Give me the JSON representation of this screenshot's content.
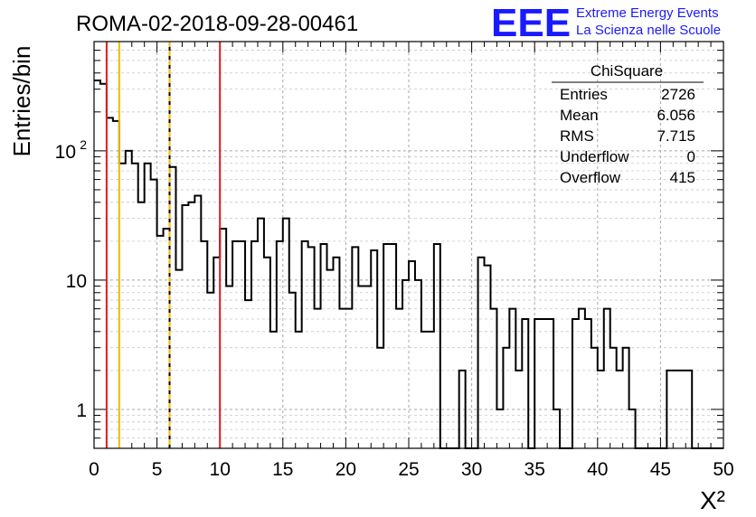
{
  "run_title": "ROMA-02-2018-09-28-00461",
  "logo": {
    "mark": "EEE",
    "line1": "Extreme Energy Events",
    "line2": "La Scienza nelle Scuole",
    "color": "#1a1aff"
  },
  "stats_box": {
    "title": "ChiSquare",
    "rows": [
      {
        "label": "Entries",
        "value": "2726"
      },
      {
        "label": "Mean",
        "value": "6.056"
      },
      {
        "label": "RMS",
        "value": "7.715"
      },
      {
        "label": "Underflow",
        "value": "0"
      },
      {
        "label": "Overflow",
        "value": "415"
      }
    ]
  },
  "chart_data": {
    "type": "histogram",
    "title": "ROMA-02-2018-09-28-00461",
    "xlabel": "X²",
    "ylabel": "Entries/bin",
    "xlim": [
      0,
      50
    ],
    "ylim": [
      0.5,
      700
    ],
    "yscale": "log",
    "grid": true,
    "bin_width": 0.5,
    "x_ticks": [
      "0",
      "5",
      "10",
      "15",
      "20",
      "25",
      "30",
      "35",
      "40",
      "45",
      "50"
    ],
    "y_ticks": [
      {
        "value": 1,
        "label": "1"
      },
      {
        "value": 10,
        "label": "10"
      },
      {
        "value": 100,
        "label": "10",
        "sup": "2"
      }
    ],
    "values": [
      350,
      330,
      180,
      170,
      80,
      100,
      80,
      40,
      80,
      60,
      22,
      25,
      75,
      12,
      38,
      40,
      45,
      20,
      8,
      15,
      25,
      9,
      20,
      20,
      7,
      20,
      30,
      15,
      4,
      20,
      30,
      8,
      4,
      20,
      18,
      6,
      19,
      12,
      15,
      6,
      6,
      18,
      9,
      9,
      17,
      3,
      19,
      19,
      6,
      10,
      14,
      10,
      4,
      4,
      19,
      0,
      0,
      0,
      2,
      0,
      0,
      15,
      13,
      6,
      1,
      3,
      6,
      2,
      5,
      0,
      5,
      5,
      5,
      1,
      0,
      0,
      5,
      6,
      5,
      3,
      2,
      6,
      3,
      2,
      3,
      1,
      0,
      0,
      0,
      0,
      0,
      2,
      2,
      2,
      2,
      0,
      0,
      0,
      0,
      0
    ],
    "vertical_lines": [
      {
        "x": 1,
        "color": "#e41a1c",
        "style": "solid"
      },
      {
        "x": 2,
        "color": "#f5b800",
        "style": "solid"
      },
      {
        "x": 6,
        "color": "#000000",
        "style": "solid"
      },
      {
        "x": 6,
        "color": "#f5b800",
        "style": "dashed"
      },
      {
        "x": 10,
        "color": "#e41a1c",
        "style": "solid"
      }
    ]
  }
}
